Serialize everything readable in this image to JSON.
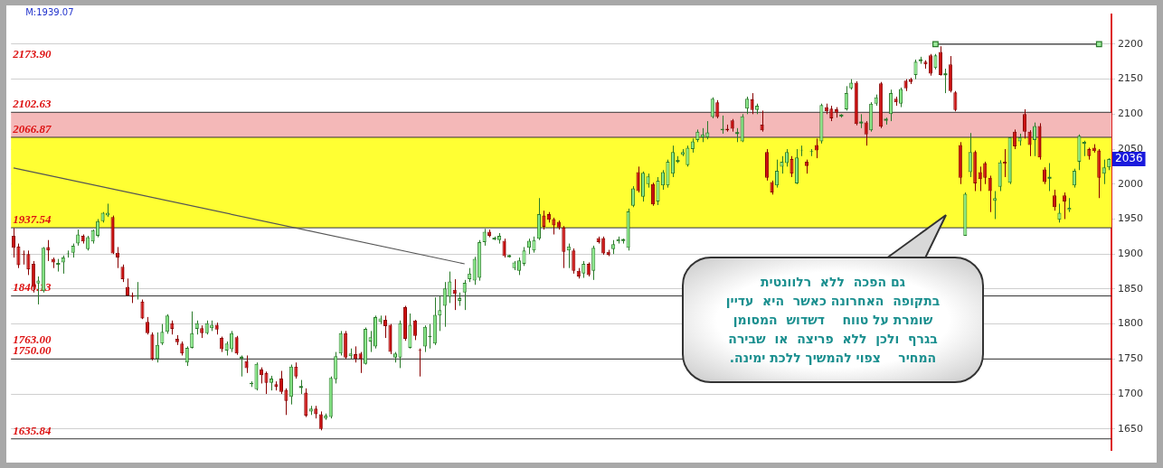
{
  "chart_data": {
    "type": "candlestick",
    "categories": [
      null,
      null,
      null,
      null,
      null,
      null,
      null,
      null,
      null,
      null,
      null,
      null,
      null,
      null,
      null,
      null,
      null,
      null,
      null,
      null,
      null,
      null,
      null,
      null,
      null,
      null,
      null,
      null,
      null,
      null,
      null,
      null,
      null,
      null,
      null,
      null,
      null,
      null,
      null,
      null,
      null,
      null,
      null,
      null,
      null,
      null,
      null,
      null,
      null,
      null,
      null,
      null,
      null,
      null,
      null,
      null,
      null,
      null,
      null,
      null,
      null,
      null,
      null,
      null,
      null,
      null,
      null,
      null,
      null,
      null,
      null,
      null,
      null,
      null,
      null,
      null,
      null,
      null,
      null,
      null,
      null,
      null,
      null,
      null,
      null,
      null,
      null,
      null,
      null,
      null,
      null,
      null,
      null,
      null,
      null,
      null,
      null,
      null,
      null,
      null,
      null,
      null,
      null,
      null,
      null,
      null,
      null,
      null,
      null,
      null,
      null,
      null,
      null,
      null,
      null,
      null,
      null,
      null,
      null,
      null,
      null,
      null,
      null,
      null,
      null,
      null,
      null,
      null,
      null,
      null,
      null,
      null,
      null,
      null,
      null,
      null,
      null,
      null,
      null,
      null,
      null,
      null,
      null,
      null,
      null,
      null,
      null,
      null,
      null,
      null,
      null,
      null,
      null,
      null,
      null,
      null,
      null,
      null,
      null,
      null,
      null,
      null,
      null,
      null,
      null,
      null,
      null,
      null,
      null,
      null,
      null,
      null,
      null,
      null,
      null,
      null,
      null,
      null,
      null,
      null,
      null,
      null,
      null,
      null,
      null,
      null,
      null,
      null,
      null,
      null,
      null,
      null,
      null,
      null,
      null,
      null,
      null,
      null,
      null,
      null,
      null,
      null,
      null,
      null,
      null,
      null,
      null,
      null,
      null,
      null,
      null,
      null,
      null,
      null,
      null,
      null,
      null,
      null,
      null,
      null,
      null,
      null
    ],
    "ohlc": [
      [
        1926,
        1937,
        1895,
        1909
      ],
      [
        1911,
        1915,
        1880,
        1884
      ],
      [
        1900,
        1905,
        1885,
        1899
      ],
      [
        1900,
        1905,
        1870,
        1878
      ],
      [
        1886,
        1890,
        1845,
        1853
      ],
      [
        1858,
        1868,
        1828,
        1862
      ],
      [
        1847,
        1910,
        1845,
        1909
      ],
      [
        1910,
        1920,
        1890,
        1905
      ],
      [
        1893,
        1895,
        1880,
        1888
      ],
      [
        1886,
        1893,
        1875,
        1886
      ],
      [
        1888,
        1898,
        1872,
        1895
      ],
      [
        1900,
        1905,
        1895,
        1901
      ],
      [
        1902,
        1915,
        1895,
        1912
      ],
      [
        1915,
        1935,
        1912,
        1928
      ],
      [
        1926,
        1928,
        1915,
        1918
      ],
      [
        1907,
        1926,
        1905,
        1924
      ],
      [
        1918,
        1935,
        1915,
        1934
      ],
      [
        1926,
        1950,
        1924,
        1947
      ],
      [
        1947,
        1960,
        1945,
        1959
      ],
      [
        1955,
        1972,
        1953,
        1959
      ],
      [
        1953,
        1955,
        1900,
        1901
      ],
      [
        1902,
        1910,
        1880,
        1895
      ],
      [
        1882,
        1885,
        1860,
        1864
      ],
      [
        1853,
        1865,
        1840,
        1841
      ],
      [
        1841,
        1845,
        1830,
        1839
      ],
      [
        1840,
        1860,
        1835,
        1841
      ],
      [
        1832,
        1835,
        1807,
        1808
      ],
      [
        1803,
        1810,
        1785,
        1787
      ],
      [
        1785,
        1788,
        1748,
        1750
      ],
      [
        1750,
        1788,
        1745,
        1770
      ],
      [
        1772,
        1800,
        1770,
        1789
      ],
      [
        1789,
        1814,
        1786,
        1812
      ],
      [
        1801,
        1805,
        1785,
        1793
      ],
      [
        1779,
        1784,
        1770,
        1774
      ],
      [
        1772,
        1775,
        1755,
        1758
      ],
      [
        1745,
        1768,
        1740,
        1766
      ],
      [
        1766,
        1818,
        1765,
        1787
      ],
      [
        1793,
        1805,
        1785,
        1801
      ],
      [
        1794,
        1798,
        1780,
        1787
      ],
      [
        1787,
        1805,
        1785,
        1801
      ],
      [
        1794,
        1805,
        1790,
        1799
      ],
      [
        1799,
        1802,
        1785,
        1792
      ],
      [
        1780,
        1782,
        1760,
        1764
      ],
      [
        1762,
        1775,
        1755,
        1772
      ],
      [
        1764,
        1790,
        1760,
        1787
      ],
      [
        1781,
        1783,
        1756,
        1758
      ],
      [
        1752,
        1755,
        1725,
        1752
      ],
      [
        1747,
        1755,
        1730,
        1737
      ],
      [
        1714,
        1718,
        1710,
        1716
      ],
      [
        1707,
        1745,
        1705,
        1743
      ],
      [
        1735,
        1738,
        1715,
        1727
      ],
      [
        1730,
        1732,
        1700,
        1716
      ],
      [
        1716,
        1726,
        1705,
        1722
      ],
      [
        1714,
        1718,
        1705,
        1710
      ],
      [
        1722,
        1733,
        1700,
        1703
      ],
      [
        1706,
        1708,
        1670,
        1690
      ],
      [
        1696,
        1742,
        1685,
        1739
      ],
      [
        1739,
        1745,
        1722,
        1725
      ],
      [
        1710,
        1720,
        1700,
        1710
      ],
      [
        1702,
        1708,
        1667,
        1669
      ],
      [
        1675,
        1683,
        1670,
        1679
      ],
      [
        1679,
        1683,
        1665,
        1671
      ],
      [
        1671,
        1675,
        1648,
        1650
      ],
      [
        1665,
        1672,
        1663,
        1669
      ],
      [
        1667,
        1725,
        1665,
        1723
      ],
      [
        1721,
        1760,
        1715,
        1754
      ],
      [
        1758,
        1790,
        1755,
        1787
      ],
      [
        1787,
        1790,
        1750,
        1752
      ],
      [
        1754,
        1765,
        1750,
        1758
      ],
      [
        1757,
        1768,
        1745,
        1750
      ],
      [
        1758,
        1760,
        1730,
        1750
      ],
      [
        1743,
        1795,
        1742,
        1793
      ],
      [
        1775,
        1790,
        1760,
        1781
      ],
      [
        1768,
        1812,
        1765,
        1810
      ],
      [
        1803,
        1812,
        1800,
        1808
      ],
      [
        1806,
        1812,
        1780,
        1797
      ],
      [
        1799,
        1800,
        1757,
        1760
      ],
      [
        1752,
        1760,
        1745,
        1758
      ],
      [
        1752,
        1805,
        1737,
        1801
      ],
      [
        1824,
        1826,
        1776,
        1779
      ],
      [
        1766,
        1815,
        1765,
        1799
      ],
      [
        1805,
        1806,
        1777,
        1783
      ],
      [
        1763,
        1765,
        1725,
        1762
      ],
      [
        1768,
        1798,
        1760,
        1796
      ],
      [
        1781,
        1800,
        1765,
        1783
      ],
      [
        1772,
        1838,
        1770,
        1813
      ],
      [
        1812,
        1840,
        1790,
        1820
      ],
      [
        1826,
        1860,
        1796,
        1851
      ],
      [
        1839,
        1875,
        1830,
        1861
      ],
      [
        1849,
        1864,
        1820,
        1843
      ],
      [
        1833,
        1845,
        1826,
        1837
      ],
      [
        1845,
        1863,
        1820,
        1859
      ],
      [
        1864,
        1880,
        1860,
        1872
      ],
      [
        1862,
        1896,
        1856,
        1893
      ],
      [
        1866,
        1920,
        1862,
        1917
      ],
      [
        1917,
        1936,
        1912,
        1932
      ],
      [
        1932,
        1935,
        1924,
        1926
      ],
      [
        1922,
        1925,
        1920,
        1922
      ],
      [
        1920,
        1930,
        1915,
        1926
      ],
      [
        1919,
        1922,
        1895,
        1897
      ],
      [
        1897,
        1899,
        1895,
        1897
      ],
      [
        1880,
        1890,
        1877,
        1888
      ],
      [
        1876,
        1895,
        1870,
        1891
      ],
      [
        1886,
        1910,
        1883,
        1905
      ],
      [
        1909,
        1922,
        1900,
        1919
      ],
      [
        1905,
        1925,
        1902,
        1920
      ],
      [
        1922,
        1980,
        1920,
        1957
      ],
      [
        1955,
        1962,
        1935,
        1939
      ],
      [
        1957,
        1960,
        1945,
        1949
      ],
      [
        1950,
        1952,
        1928,
        1941
      ],
      [
        1946,
        1948,
        1935,
        1938
      ],
      [
        1938,
        1940,
        1880,
        1903
      ],
      [
        1905,
        1915,
        1880,
        1911
      ],
      [
        1905,
        1908,
        1872,
        1876
      ],
      [
        1876,
        1880,
        1865,
        1868
      ],
      [
        1872,
        1890,
        1866,
        1886
      ],
      [
        1886,
        1888,
        1868,
        1870
      ],
      [
        1876,
        1912,
        1863,
        1909
      ],
      [
        1923,
        1925,
        1915,
        1917
      ],
      [
        1923,
        1925,
        1899,
        1901
      ],
      [
        1903,
        1906,
        1897,
        1899
      ],
      [
        1907,
        1920,
        1900,
        1914
      ],
      [
        1918,
        1925,
        1915,
        1921
      ],
      [
        1920,
        1922,
        1915,
        1920
      ],
      [
        1909,
        1965,
        1905,
        1961
      ],
      [
        1969,
        1997,
        1967,
        1994
      ],
      [
        2017,
        2025,
        1988,
        1990
      ],
      [
        1982,
        2018,
        1975,
        2016
      ],
      [
        2000,
        2015,
        1995,
        2011
      ],
      [
        2000,
        2002,
        1969,
        1971
      ],
      [
        1975,
        2010,
        1970,
        2005
      ],
      [
        1998,
        2020,
        1992,
        2017
      ],
      [
        1998,
        2035,
        1995,
        2032
      ],
      [
        2015,
        2055,
        2010,
        2046
      ],
      [
        2033,
        2040,
        2030,
        2033
      ],
      [
        2042,
        2050,
        2040,
        2046
      ],
      [
        2027,
        2055,
        2025,
        2052
      ],
      [
        2050,
        2065,
        2045,
        2061
      ],
      [
        2063,
        2078,
        2060,
        2075
      ],
      [
        2067,
        2080,
        2060,
        2071
      ],
      [
        2067,
        2090,
        2064,
        2074
      ],
      [
        2096,
        2124,
        2094,
        2122
      ],
      [
        2117,
        2120,
        2094,
        2096
      ],
      [
        2077,
        2098,
        2072,
        2079
      ],
      [
        2079,
        2085,
        2075,
        2077
      ],
      [
        2091,
        2093,
        2075,
        2079
      ],
      [
        2073,
        2080,
        2060,
        2073
      ],
      [
        2061,
        2100,
        2060,
        2097
      ],
      [
        2108,
        2125,
        2100,
        2122
      ],
      [
        2121,
        2130,
        2100,
        2106
      ],
      [
        2106,
        2115,
        2100,
        2112
      ],
      [
        2085,
        2105,
        2075,
        2077
      ],
      [
        2046,
        2050,
        2005,
        2009
      ],
      [
        2003,
        2005,
        1985,
        1988
      ],
      [
        1998,
        2035,
        1995,
        2019
      ],
      [
        2025,
        2040,
        2015,
        2032
      ],
      [
        2030,
        2050,
        2025,
        2046
      ],
      [
        2036,
        2040,
        2010,
        2015
      ],
      [
        2001,
        2050,
        2000,
        2038
      ],
      [
        2048,
        2055,
        2040,
        2049
      ],
      [
        2032,
        2035,
        2015,
        2026
      ],
      [
        2046,
        2050,
        2040,
        2047
      ],
      [
        2056,
        2065,
        2037,
        2048
      ],
      [
        2061,
        2115,
        2058,
        2113
      ],
      [
        2110,
        2115,
        2100,
        2104
      ],
      [
        2108,
        2112,
        2090,
        2094
      ],
      [
        2107,
        2110,
        2095,
        2102
      ],
      [
        2098,
        2100,
        2095,
        2098
      ],
      [
        2107,
        2140,
        2105,
        2130
      ],
      [
        2137,
        2150,
        2135,
        2145
      ],
      [
        2145,
        2147,
        2084,
        2086
      ],
      [
        2088,
        2100,
        2080,
        2088
      ],
      [
        2088,
        2090,
        2055,
        2071
      ],
      [
        2077,
        2117,
        2075,
        2115
      ],
      [
        2115,
        2128,
        2112,
        2124
      ],
      [
        2144,
        2146,
        2080,
        2082
      ],
      [
        2092,
        2095,
        2085,
        2092
      ],
      [
        2100,
        2135,
        2090,
        2130
      ],
      [
        2122,
        2125,
        2112,
        2117
      ],
      [
        2115,
        2138,
        2110,
        2136
      ],
      [
        2148,
        2150,
        2133,
        2137
      ],
      [
        2150,
        2152,
        2143,
        2146
      ],
      [
        2156,
        2178,
        2150,
        2175
      ],
      [
        2177,
        2182,
        2172,
        2177
      ],
      [
        2175,
        2177,
        2165,
        2171
      ],
      [
        2184,
        2186,
        2155,
        2158
      ],
      [
        2166,
        2186,
        2164,
        2184
      ],
      [
        2189,
        2197,
        2155,
        2156
      ],
      [
        2157,
        2165,
        2130,
        2157
      ],
      [
        2171,
        2183,
        2131,
        2133
      ],
      [
        2131,
        2133,
        2104,
        2106
      ],
      [
        2056,
        2060,
        2000,
        2009
      ],
      [
        1926,
        1988,
        1926,
        1986
      ],
      [
        2017,
        2073,
        2010,
        2046
      ],
      [
        2046,
        2048,
        1990,
        2001
      ],
      [
        2017,
        2025,
        1990,
        2007
      ],
      [
        2030,
        2032,
        2000,
        2009
      ],
      [
        2009,
        2012,
        1960,
        1990
      ],
      [
        1976,
        1990,
        1950,
        1980
      ],
      [
        1996,
        2034,
        1990,
        2031
      ],
      [
        2032,
        2050,
        2010,
        2029
      ],
      [
        2002,
        2067,
        2000,
        2067
      ],
      [
        2075,
        2078,
        2050,
        2054
      ],
      [
        2061,
        2072,
        2055,
        2067
      ],
      [
        2100,
        2107,
        2065,
        2075
      ],
      [
        2075,
        2077,
        2040,
        2056
      ],
      [
        2063,
        2088,
        2040,
        2083
      ],
      [
        2083,
        2087,
        2035,
        2038
      ],
      [
        2021,
        2024,
        2000,
        2003
      ],
      [
        2009,
        2030,
        1990,
        2009
      ],
      [
        1984,
        1992,
        1962,
        1967
      ],
      [
        1949,
        1972,
        1945,
        1959
      ],
      [
        1984,
        1988,
        1950,
        1975
      ],
      [
        1963,
        1980,
        1960,
        1966
      ],
      [
        1998,
        2022,
        1995,
        2019
      ],
      [
        2032,
        2071,
        2020,
        2069
      ],
      [
        2059,
        2062,
        2040,
        2059
      ],
      [
        2050,
        2052,
        2035,
        2040
      ],
      [
        2052,
        2057,
        2045,
        2047
      ],
      [
        2048,
        2050,
        1980,
        2009
      ],
      [
        2015,
        2035,
        2000,
        2024
      ],
      [
        2024,
        2037,
        2020,
        2036
      ]
    ],
    "series": [
      {
        "type": "line",
        "color": "#555555",
        "marker": "none",
        "values": [
          2023,
          null,
          null,
          null,
          null,
          null,
          null,
          null,
          null,
          null,
          null,
          null,
          null,
          null,
          null,
          null,
          null,
          null,
          null,
          null,
          null,
          null,
          null,
          null,
          null,
          null,
          null,
          null,
          null,
          null,
          null,
          null,
          null,
          null,
          null,
          null,
          null,
          null,
          null,
          null,
          null,
          null,
          null,
          null,
          null,
          null,
          null,
          null,
          null,
          null,
          null,
          null,
          null,
          null,
          null,
          null,
          null,
          null,
          null,
          null,
          null,
          null,
          null,
          null,
          null,
          null,
          null,
          null,
          null,
          null,
          null,
          null,
          null,
          null,
          null,
          null,
          null,
          null,
          null,
          null,
          null,
          null,
          null,
          null,
          null,
          null,
          null,
          null,
          null,
          null,
          null,
          1886,
          null,
          null,
          null,
          null,
          null,
          null,
          null,
          null,
          null,
          null,
          null,
          null,
          null,
          null,
          null,
          null,
          null,
          null,
          null,
          null,
          null,
          null,
          null,
          null,
          null,
          null,
          null,
          null,
          null,
          null,
          null,
          null,
          null,
          null,
          null,
          null,
          null,
          null,
          null,
          null,
          null,
          null,
          null,
          null,
          null,
          null,
          null,
          null,
          null,
          null,
          null,
          null,
          null,
          null,
          null,
          null,
          null,
          null,
          null,
          null,
          null,
          null,
          null,
          null,
          null,
          null,
          null,
          null,
          null,
          null,
          null,
          null,
          null,
          null,
          null,
          null,
          null,
          null,
          null,
          null,
          null,
          null,
          null,
          null,
          null,
          null,
          null,
          null,
          null,
          null,
          null,
          null,
          null,
          null,
          null,
          null,
          null,
          null,
          null,
          null,
          null,
          null,
          null,
          null,
          null,
          null,
          null,
          null,
          null,
          null,
          null,
          null,
          null,
          null,
          null,
          null,
          null,
          null,
          null,
          null,
          null,
          null,
          null,
          null,
          null,
          null,
          null,
          null,
          null,
          null
        ]
      },
      {
        "type": "line",
        "color": "#333333",
        "marker": "square",
        "values": [
          null,
          null,
          null,
          null,
          null,
          null,
          null,
          null,
          null,
          null,
          null,
          null,
          null,
          null,
          null,
          null,
          null,
          null,
          null,
          null,
          null,
          null,
          null,
          null,
          null,
          null,
          null,
          null,
          null,
          null,
          null,
          null,
          null,
          null,
          null,
          null,
          null,
          null,
          null,
          null,
          null,
          null,
          null,
          null,
          null,
          null,
          null,
          null,
          null,
          null,
          null,
          null,
          null,
          null,
          null,
          null,
          null,
          null,
          null,
          null,
          null,
          null,
          null,
          null,
          null,
          null,
          null,
          null,
          null,
          null,
          null,
          null,
          null,
          null,
          null,
          null,
          null,
          null,
          null,
          null,
          null,
          null,
          null,
          null,
          null,
          null,
          null,
          null,
          null,
          null,
          null,
          null,
          null,
          null,
          null,
          null,
          null,
          null,
          null,
          null,
          null,
          null,
          null,
          null,
          null,
          null,
          null,
          null,
          null,
          null,
          null,
          null,
          null,
          null,
          null,
          null,
          null,
          null,
          null,
          null,
          null,
          null,
          null,
          null,
          null,
          null,
          null,
          null,
          null,
          null,
          null,
          null,
          null,
          null,
          null,
          null,
          null,
          null,
          null,
          null,
          null,
          null,
          null,
          null,
          null,
          null,
          null,
          null,
          null,
          null,
          null,
          null,
          null,
          null,
          null,
          null,
          null,
          null,
          null,
          null,
          null,
          null,
          null,
          null,
          null,
          null,
          null,
          null,
          null,
          null,
          null,
          null,
          null,
          null,
          null,
          null,
          null,
          null,
          null,
          null,
          null,
          null,
          null,
          null,
          null,
          null,
          2200,
          null,
          null,
          null,
          null,
          null,
          null,
          null,
          null,
          null,
          null,
          null,
          null,
          null,
          null,
          null,
          null,
          null,
          null,
          null,
          null,
          null,
          null,
          null,
          null,
          null,
          null,
          null,
          null,
          null,
          null,
          null,
          null,
          2200,
          null,
          null
        ]
      }
    ],
    "ylim": [
      1620,
      2243
    ],
    "yticks": [
      1650,
      1700,
      1750,
      1800,
      1850,
      1900,
      1950,
      2000,
      2050,
      2100,
      2150,
      2200
    ],
    "grid": "y",
    "legend": false,
    "tick_labels": "y",
    "ref_lines": [
      {
        "axis": "y",
        "value": 2102.63,
        "label": "2102.63"
      },
      {
        "axis": "y",
        "value": 2066.87,
        "label": "2066.87"
      },
      {
        "axis": "y",
        "value": 1937.54,
        "label": "1937.54"
      },
      {
        "axis": "y",
        "value": 1840.13,
        "label": "1840.13"
      },
      {
        "axis": "y",
        "value": 1750,
        "label": "1750.00"
      },
      {
        "axis": "y",
        "value": 1635.84,
        "label": "1635.84"
      }
    ],
    "bands": [
      {
        "axis": "y",
        "from": 2066.87,
        "to": 2102.63,
        "color": "#f4b8b8"
      },
      {
        "axis": "y",
        "from": 1937.54,
        "to": 2066.87,
        "color": "#ffff33"
      }
    ],
    "annotations": [
      "M:1939.07",
      "גם הפכה  ללא  רלוונטית\nבתקופה  האחרונה כאשר  היא  עדיין\nשומרת על טווח    דשדוש  המסומן\nבגרף  ולכן  ללא  פריצה  או  שבירה\nהמחיר    צפוי להמשיך ללכת ימינה.",
      "2173.90",
      "1763.00",
      {
        "text": "2036",
        "y": 2036
      }
    ]
  }
}
